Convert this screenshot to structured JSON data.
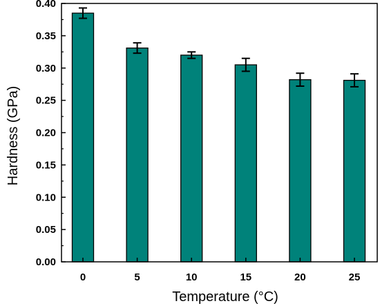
{
  "chart_data": {
    "type": "bar",
    "xlabel": "Temperature (°C)",
    "ylabel": "Hardness (GPa)",
    "categories": [
      "0",
      "5",
      "10",
      "15",
      "20",
      "25"
    ],
    "values": [
      0.385,
      0.331,
      0.32,
      0.305,
      0.282,
      0.281
    ],
    "errors": [
      0.008,
      0.008,
      0.005,
      0.01,
      0.01,
      0.01
    ],
    "ylim": [
      0,
      0.4
    ],
    "yticks": [
      "0.00",
      "0.05",
      "0.10",
      "0.15",
      "0.20",
      "0.25",
      "0.30",
      "0.35",
      "0.40"
    ],
    "grid": false,
    "bar_color": "#00827a",
    "edge_color": "#000000"
  }
}
